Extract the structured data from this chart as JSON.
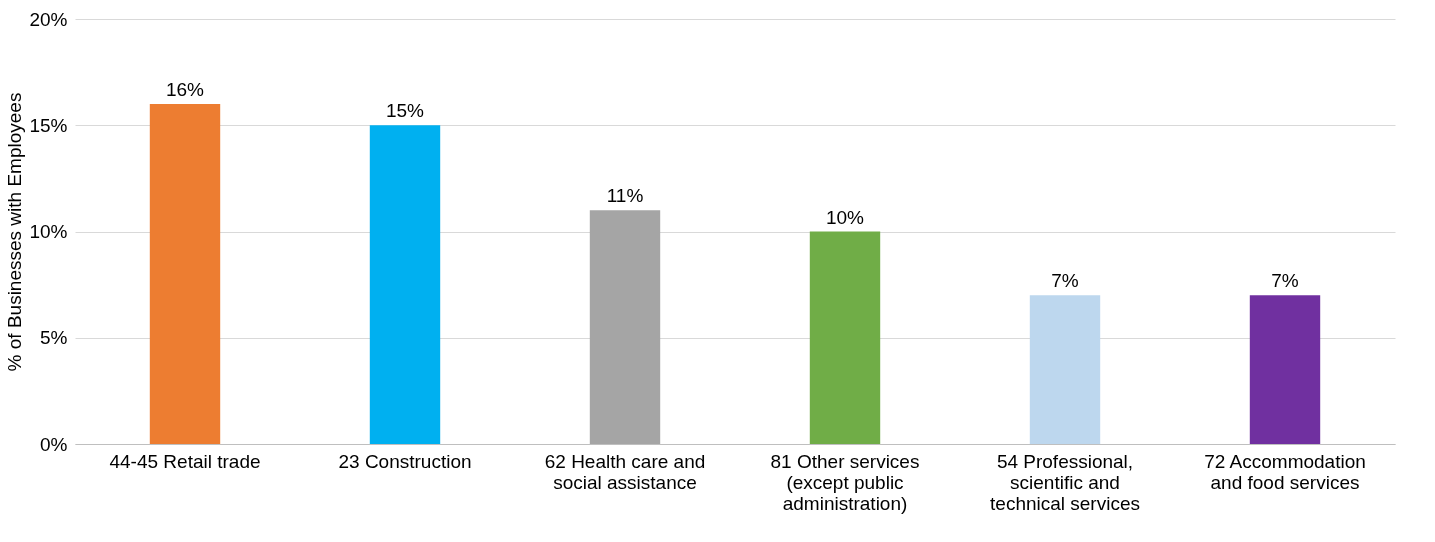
{
  "chart_data": {
    "type": "bar",
    "ylabel": "% of Businesses with Employees",
    "categories": [
      "44-45 Retail trade",
      "23 Construction",
      "62 Health care and social assistance",
      "81 Other services (except public administration)",
      "54 Professional, scientific and technical services",
      "72 Accommodation and food services"
    ],
    "values": [
      16,
      15,
      11,
      10,
      7,
      7
    ],
    "colors": [
      "#ed7d31",
      "#00b0f0",
      "#a5a5a5",
      "#70ad47",
      "#bdd7ee",
      "#7030a0"
    ],
    "value_labels": [
      "16%",
      "15%",
      "11%",
      "10%",
      "7%",
      "7%"
    ],
    "ylim": [
      0,
      20
    ],
    "yticks": [
      {
        "value": 0,
        "label": "0%"
      },
      {
        "value": 5,
        "label": "5%"
      },
      {
        "value": 10,
        "label": "10%"
      },
      {
        "value": 15,
        "label": "15%"
      },
      {
        "value": 20,
        "label": "20%"
      }
    ],
    "grid": "y"
  }
}
